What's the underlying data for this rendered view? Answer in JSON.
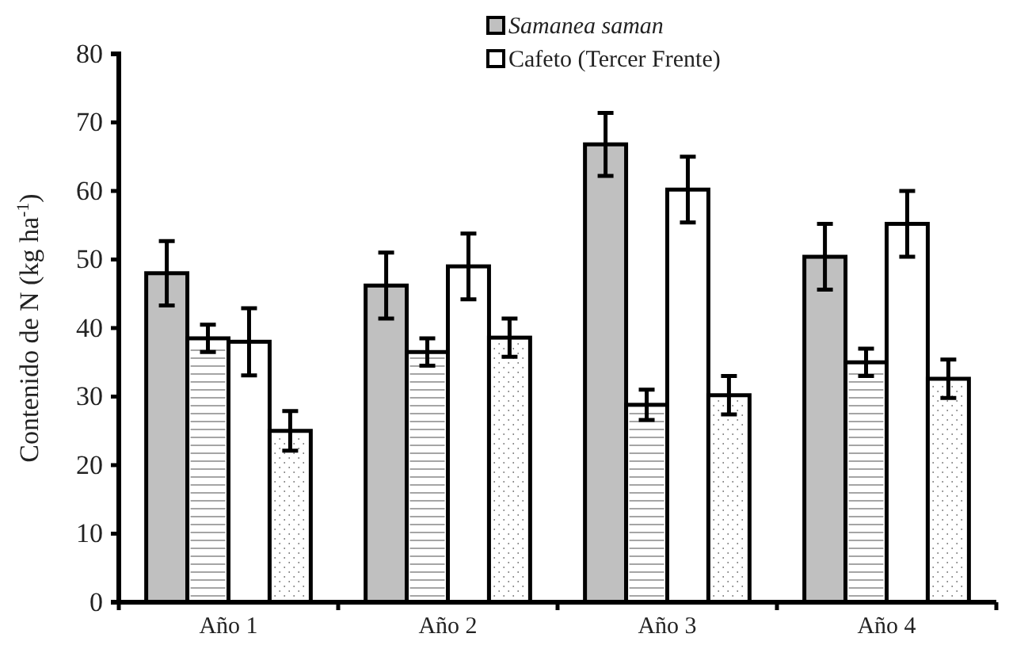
{
  "chart_data": {
    "type": "bar",
    "ylabel": "Contenido de N (kg ha$^{-1}$)",
    "categories": [
      "Año 1",
      "Año 2",
      "Año 3",
      "Año 4"
    ],
    "series": [
      {
        "name": "Samanea saman",
        "color": "#c0c0c0",
        "values": [
          48,
          46.2,
          66.8,
          50.4
        ],
        "errors": [
          4.7,
          4.8,
          4.6,
          4.8
        ]
      },
      {
        "color": "#ffffff",
        "values": [
          38.5,
          36.5,
          28.8,
          35
        ],
        "errors": [
          2,
          2,
          2.2,
          2
        ]
      },
      {
        "name": "Cafeto (Tercer Frente)",
        "color": "#ffffff",
        "values": [
          38,
          49,
          60.2,
          55.2
        ],
        "errors": [
          4.9,
          4.8,
          4.8,
          4.8
        ]
      },
      {
        "color": "#ffffff",
        "values": [
          25,
          38.6,
          30.2,
          32.6
        ],
        "errors": [
          2.9,
          2.8,
          2.8,
          2.8
        ]
      }
    ],
    "ylim": [
      0,
      80
    ],
    "yticks": [
      0,
      10,
      20,
      30,
      40,
      50,
      60,
      70,
      80
    ],
    "grid": false,
    "legend": "top"
  }
}
